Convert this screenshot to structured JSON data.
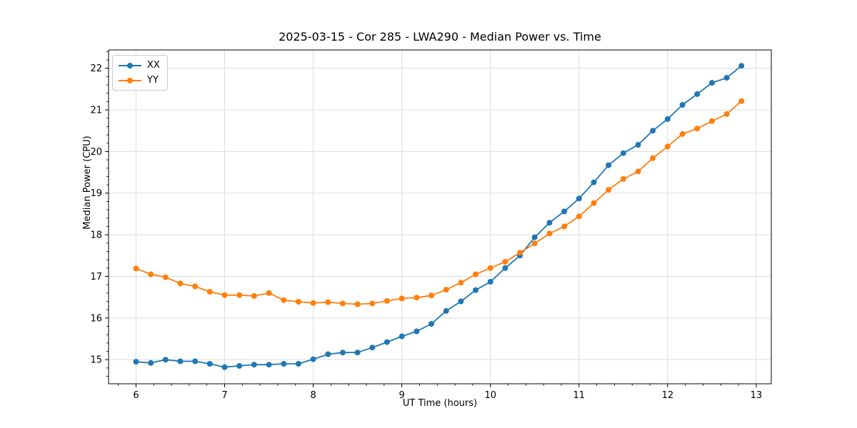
{
  "chart_data": {
    "type": "line",
    "title": "2025-03-15 - Cor 285 - LWA290 - Median Power vs. Time",
    "xlabel": "UT Time (hours)",
    "ylabel": "Median Power (CPU)",
    "xlim": [
      5.69,
      13.17
    ],
    "ylim": [
      14.42,
      22.44
    ],
    "xticks": [
      6,
      7,
      8,
      9,
      10,
      11,
      12,
      13
    ],
    "yticks": [
      15,
      16,
      17,
      18,
      19,
      20,
      21,
      22
    ],
    "minor_tick_step": 0.2,
    "grid": true,
    "grid_color": "#dcdcdc",
    "spine_color": "#000000",
    "legend_position": "upper-left",
    "x": [
      6.0,
      6.167,
      6.333,
      6.5,
      6.667,
      6.833,
      7.0,
      7.167,
      7.333,
      7.5,
      7.667,
      7.833,
      8.0,
      8.167,
      8.333,
      8.5,
      8.667,
      8.833,
      9.0,
      9.167,
      9.333,
      9.5,
      9.667,
      9.833,
      10.0,
      10.167,
      10.333,
      10.5,
      10.667,
      10.833,
      11.0,
      11.167,
      11.333,
      11.5,
      11.667,
      11.833,
      12.0,
      12.167,
      12.333,
      12.5,
      12.667,
      12.833
    ],
    "series": [
      {
        "name": "XX",
        "color": "#1f77b4",
        "values": [
          14.95,
          14.92,
          15.0,
          14.96,
          14.96,
          14.9,
          14.82,
          14.85,
          14.88,
          14.88,
          14.9,
          14.9,
          15.01,
          15.13,
          15.17,
          15.17,
          15.29,
          15.42,
          15.56,
          15.68,
          15.86,
          16.17,
          16.4,
          16.67,
          16.87,
          17.2,
          17.5,
          17.94,
          18.29,
          18.56,
          18.87,
          19.26,
          19.67,
          19.96,
          20.16,
          20.5,
          20.78,
          21.12,
          21.38,
          21.65,
          21.77,
          22.06
        ]
      },
      {
        "name": "YY",
        "color": "#ff7f0e",
        "values": [
          17.19,
          17.05,
          16.98,
          16.83,
          16.76,
          16.63,
          16.55,
          16.55,
          16.53,
          16.6,
          16.43,
          16.39,
          16.36,
          16.38,
          16.35,
          16.33,
          16.35,
          16.41,
          16.47,
          16.49,
          16.54,
          16.68,
          16.85,
          17.05,
          17.2,
          17.35,
          17.57,
          17.79,
          18.03,
          18.2,
          18.44,
          18.76,
          19.08,
          19.34,
          19.52,
          19.84,
          20.12,
          20.42,
          20.55,
          20.73,
          20.9,
          21.21
        ]
      }
    ]
  }
}
